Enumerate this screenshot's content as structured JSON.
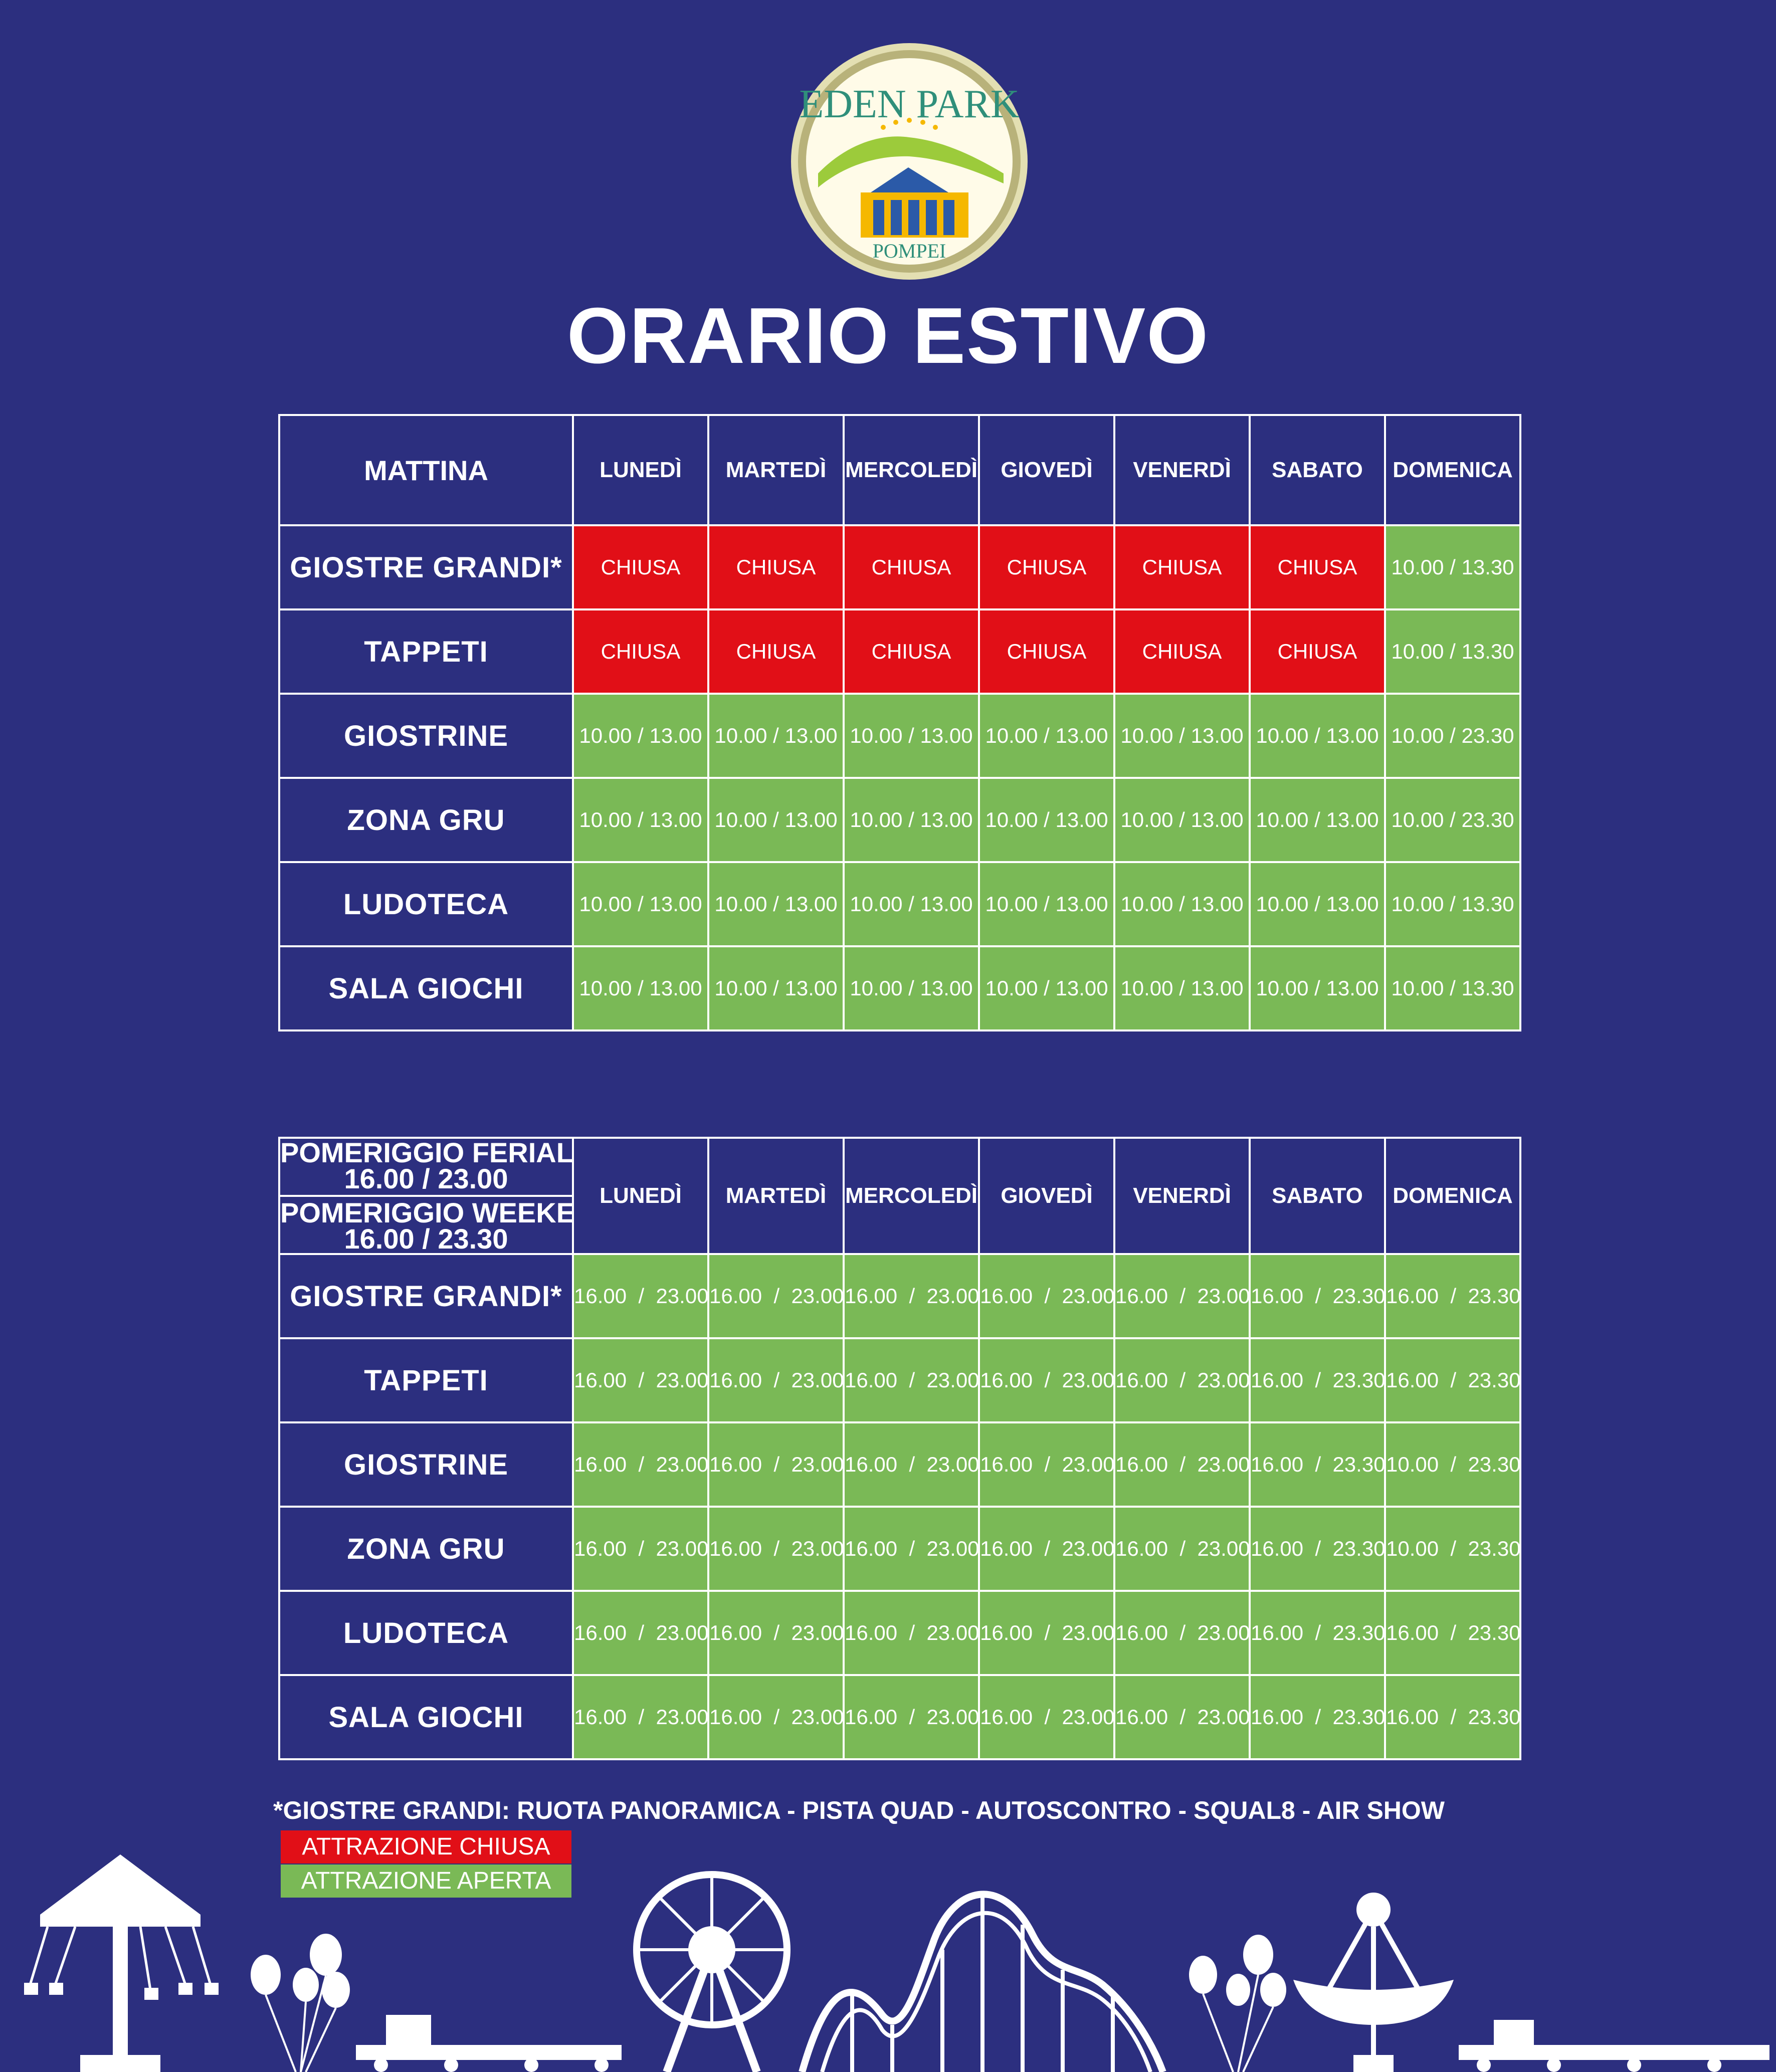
{
  "logo": {
    "text": "EDEN PARK",
    "subtext": "POMPEI",
    "colors": {
      "ring": "#c9c58f",
      "inner": "#fffbe8",
      "mountain": "#9ccb3b",
      "blue": "#2b5aa8",
      "yellow": "#f5b800",
      "lettering": "#2f8f7a"
    }
  },
  "title": "ORARIO ESTIVO",
  "days": [
    "LUNEDÌ",
    "MARTEDÌ",
    "MERCOLEDÌ",
    "GIOVEDÌ",
    "VENERDÌ",
    "SABATO",
    "DOMENICA"
  ],
  "morning": {
    "corner": "MATTINA",
    "rows": [
      {
        "label": "GIOSTRE GRANDI*",
        "cells": [
          {
            "text": "CHIUSA",
            "status": "closed"
          },
          {
            "text": "CHIUSA",
            "status": "closed"
          },
          {
            "text": "CHIUSA",
            "status": "closed"
          },
          {
            "text": "CHIUSA",
            "status": "closed"
          },
          {
            "text": "CHIUSA",
            "status": "closed"
          },
          {
            "text": "CHIUSA",
            "status": "closed"
          },
          {
            "text": "10.00 / 13.30",
            "status": "open"
          }
        ]
      },
      {
        "label": "TAPPETI",
        "cells": [
          {
            "text": "CHIUSA",
            "status": "closed"
          },
          {
            "text": "CHIUSA",
            "status": "closed"
          },
          {
            "text": "CHIUSA",
            "status": "closed"
          },
          {
            "text": "CHIUSA",
            "status": "closed"
          },
          {
            "text": "CHIUSA",
            "status": "closed"
          },
          {
            "text": "CHIUSA",
            "status": "closed"
          },
          {
            "text": "10.00 / 13.30",
            "status": "open"
          }
        ]
      },
      {
        "label": "GIOSTRINE",
        "cells": [
          {
            "text": "10.00 / 13.00",
            "status": "open"
          },
          {
            "text": "10.00 / 13.00",
            "status": "open"
          },
          {
            "text": "10.00 / 13.00",
            "status": "open"
          },
          {
            "text": "10.00 / 13.00",
            "status": "open"
          },
          {
            "text": "10.00 / 13.00",
            "status": "open"
          },
          {
            "text": "10.00 / 13.00",
            "status": "open"
          },
          {
            "text": "10.00 / 23.30",
            "status": "open"
          }
        ]
      },
      {
        "label": "ZONA GRU",
        "cells": [
          {
            "text": "10.00 / 13.00",
            "status": "open"
          },
          {
            "text": "10.00 / 13.00",
            "status": "open"
          },
          {
            "text": "10.00 / 13.00",
            "status": "open"
          },
          {
            "text": "10.00 / 13.00",
            "status": "open"
          },
          {
            "text": "10.00 / 13.00",
            "status": "open"
          },
          {
            "text": "10.00 / 13.00",
            "status": "open"
          },
          {
            "text": "10.00 / 23.30",
            "status": "open"
          }
        ]
      },
      {
        "label": "LUDOTECA",
        "cells": [
          {
            "text": "10.00 / 13.00",
            "status": "open"
          },
          {
            "text": "10.00 / 13.00",
            "status": "open"
          },
          {
            "text": "10.00 / 13.00",
            "status": "open"
          },
          {
            "text": "10.00 / 13.00",
            "status": "open"
          },
          {
            "text": "10.00 / 13.00",
            "status": "open"
          },
          {
            "text": "10.00 / 13.00",
            "status": "open"
          },
          {
            "text": "10.00 / 13.30",
            "status": "open"
          }
        ]
      },
      {
        "label": "SALA GIOCHI",
        "cells": [
          {
            "text": "10.00 / 13.00",
            "status": "open"
          },
          {
            "text": "10.00 / 13.00",
            "status": "open"
          },
          {
            "text": "10.00 / 13.00",
            "status": "open"
          },
          {
            "text": "10.00 / 13.00",
            "status": "open"
          },
          {
            "text": "10.00 / 13.00",
            "status": "open"
          },
          {
            "text": "10.00 / 13.00",
            "status": "open"
          },
          {
            "text": "10.00 / 13.30",
            "status": "open"
          }
        ]
      }
    ]
  },
  "afternoon": {
    "corner_weekday_label": "POMERIGGIO FERIALI",
    "corner_weekday_time": "16.00 / 23.00",
    "corner_weekend_label": "POMERIGGIO WEEKEND",
    "corner_weekend_time": "16.00 / 23.30",
    "rows": [
      {
        "label": "GIOSTRE GRANDI*",
        "cells": [
          {
            "text": "16.00  /  23.00",
            "status": "open"
          },
          {
            "text": "16.00  /  23.00",
            "status": "open"
          },
          {
            "text": "16.00  /  23.00",
            "status": "open"
          },
          {
            "text": "16.00  /  23.00",
            "status": "open"
          },
          {
            "text": "16.00  /  23.00",
            "status": "open"
          },
          {
            "text": "16.00  /  23.30",
            "status": "open"
          },
          {
            "text": "16.00  /  23.30",
            "status": "open"
          }
        ]
      },
      {
        "label": "TAPPETI",
        "cells": [
          {
            "text": "16.00  /  23.00",
            "status": "open"
          },
          {
            "text": "16.00  /  23.00",
            "status": "open"
          },
          {
            "text": "16.00  /  23.00",
            "status": "open"
          },
          {
            "text": "16.00  /  23.00",
            "status": "open"
          },
          {
            "text": "16.00  /  23.00",
            "status": "open"
          },
          {
            "text": "16.00  /  23.30",
            "status": "open"
          },
          {
            "text": "16.00  /  23.30",
            "status": "open"
          }
        ]
      },
      {
        "label": "GIOSTRINE",
        "cells": [
          {
            "text": "16.00  /  23.00",
            "status": "open"
          },
          {
            "text": "16.00  /  23.00",
            "status": "open"
          },
          {
            "text": "16.00  /  23.00",
            "status": "open"
          },
          {
            "text": "16.00  /  23.00",
            "status": "open"
          },
          {
            "text": "16.00  /  23.00",
            "status": "open"
          },
          {
            "text": "16.00  /  23.30",
            "status": "open"
          },
          {
            "text": "10.00  /  23.30",
            "status": "open"
          }
        ]
      },
      {
        "label": "ZONA GRU",
        "cells": [
          {
            "text": "16.00  /  23.00",
            "status": "open"
          },
          {
            "text": "16.00  /  23.00",
            "status": "open"
          },
          {
            "text": "16.00  /  23.00",
            "status": "open"
          },
          {
            "text": "16.00  /  23.00",
            "status": "open"
          },
          {
            "text": "16.00  /  23.00",
            "status": "open"
          },
          {
            "text": "16.00  /  23.30",
            "status": "open"
          },
          {
            "text": "10.00  /  23.30",
            "status": "open"
          }
        ]
      },
      {
        "label": "LUDOTECA",
        "cells": [
          {
            "text": "16.00  /  23.00",
            "status": "open"
          },
          {
            "text": "16.00  /  23.00",
            "status": "open"
          },
          {
            "text": "16.00  /  23.00",
            "status": "open"
          },
          {
            "text": "16.00  /  23.00",
            "status": "open"
          },
          {
            "text": "16.00  /  23.00",
            "status": "open"
          },
          {
            "text": "16.00  /  23.30",
            "status": "open"
          },
          {
            "text": "16.00  /  23.30",
            "status": "open"
          }
        ]
      },
      {
        "label": "SALA GIOCHI",
        "cells": [
          {
            "text": "16.00  /  23.00",
            "status": "open"
          },
          {
            "text": "16.00  /  23.00",
            "status": "open"
          },
          {
            "text": "16.00  /  23.00",
            "status": "open"
          },
          {
            "text": "16.00  /  23.00",
            "status": "open"
          },
          {
            "text": "16.00  /  23.00",
            "status": "open"
          },
          {
            "text": "16.00  /  23.30",
            "status": "open"
          },
          {
            "text": "16.00  /  23.30",
            "status": "open"
          }
        ]
      }
    ]
  },
  "footnote": "*GIOSTRE GRANDI: RUOTA PANORAMICA - PISTA QUAD - AUTOSCONTRO - SQUAL8 - AIR SHOW",
  "legend": {
    "closed_label": "ATTRAZIONE CHIUSA",
    "open_label": "ATTRAZIONE APERTA"
  },
  "colors": {
    "background": "#2c2f7f",
    "closed": "#e10f17",
    "open": "#7ab956",
    "grid": "#ffffff"
  }
}
